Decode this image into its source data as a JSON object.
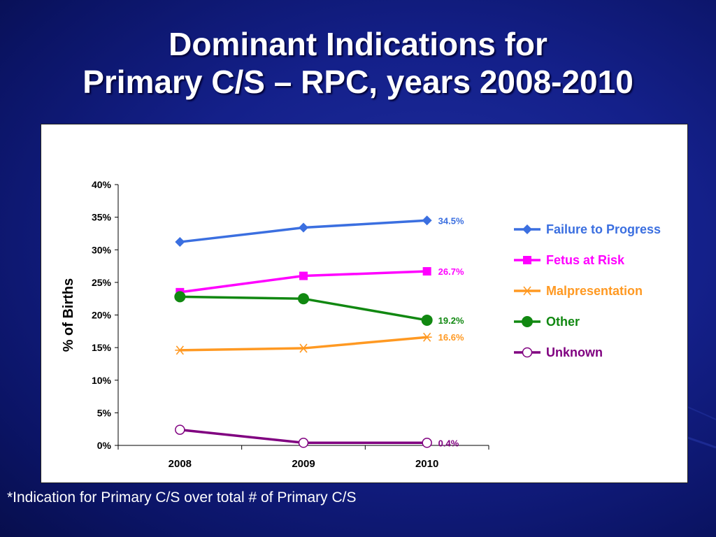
{
  "slide": {
    "title_line1": "Dominant Indications for",
    "title_line2": "Primary C/S – RPC, years 2008-2010",
    "footnote": "*Indication for Primary C/S over total # of Primary C/S"
  },
  "chart_data": {
    "type": "line",
    "title": "",
    "xlabel": "",
    "ylabel": "% of Births",
    "categories": [
      "2008",
      "2009",
      "2010"
    ],
    "ylim": [
      0,
      40
    ],
    "yticks": [
      "0%",
      "5%",
      "10%",
      "15%",
      "20%",
      "25%",
      "30%",
      "35%",
      "40%"
    ],
    "grid": false,
    "legend_position": "right",
    "series": [
      {
        "name": "Failure to Progress",
        "values": [
          31.2,
          33.4,
          34.5
        ],
        "color": "#3b6fe0",
        "marker": "diamond",
        "end_label": "34.5%"
      },
      {
        "name": "Fetus at Risk",
        "values": [
          23.5,
          26.0,
          26.7
        ],
        "color": "#ff00ff",
        "marker": "square",
        "end_label": "26.7%"
      },
      {
        "name": "Malpresentation",
        "values": [
          14.6,
          14.9,
          16.6
        ],
        "color": "#ff9922",
        "marker": "asterisk",
        "end_label": "16.6%"
      },
      {
        "name": "Other",
        "values": [
          22.8,
          22.5,
          19.2
        ],
        "color": "#118811",
        "marker": "circle",
        "end_label": "19.2%"
      },
      {
        "name": "Unknown",
        "values": [
          2.4,
          0.4,
          0.4
        ],
        "color": "#800080",
        "marker": "open-circle",
        "end_label": "0.4%"
      }
    ]
  }
}
